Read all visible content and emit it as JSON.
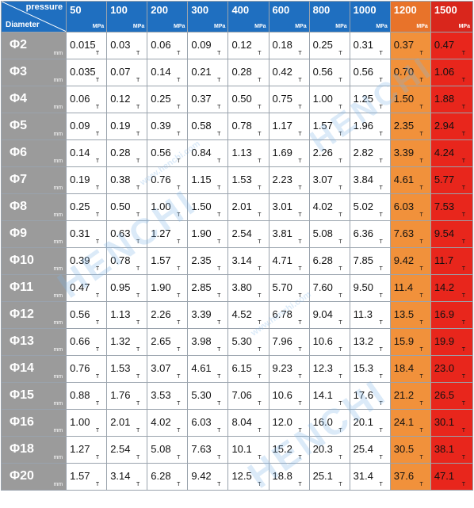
{
  "header": {
    "pressure_label": "pressure",
    "diameter_label": "Diameter",
    "pressure_unit": "MPa",
    "pressures": [
      "50",
      "100",
      "200",
      "300",
      "400",
      "600",
      "800",
      "1000",
      "1200",
      "1500"
    ]
  },
  "row_unit": "mm",
  "value_unit": "T",
  "watermark": {
    "brand": "HENCHI",
    "url": "www.henchi.com"
  },
  "colors": {
    "header_blue": "#1f6fc0",
    "diameter_gray": "#9b9b9b",
    "orange": "#f1913b",
    "red": "#e8261c"
  },
  "rows": [
    {
      "diameter": "Φ2",
      "values": [
        "0.015",
        "0.03",
        "0.06",
        "0.09",
        "0.12",
        "0.18",
        "0.25",
        "0.31",
        "0.37",
        "0.47"
      ]
    },
    {
      "diameter": "Φ3",
      "values": [
        "0.035",
        "0.07",
        "0.14",
        "0.21",
        "0.28",
        "0.42",
        "0.56",
        "0.56",
        "0.70",
        "1.06"
      ]
    },
    {
      "diameter": "Φ4",
      "values": [
        "0.06",
        "0.12",
        "0.25",
        "0.37",
        "0.50",
        "0.75",
        "1.00",
        "1.25",
        "1.50",
        "1.88"
      ]
    },
    {
      "diameter": "Φ5",
      "values": [
        "0.09",
        "0.19",
        "0.39",
        "0.58",
        "0.78",
        "1.17",
        "1.57",
        "1.96",
        "2.35",
        "2.94"
      ]
    },
    {
      "diameter": "Φ6",
      "values": [
        "0.14",
        "0.28",
        "0.56",
        "0.84",
        "1.13",
        "1.69",
        "2.26",
        "2.82",
        "3.39",
        "4.24"
      ]
    },
    {
      "diameter": "Φ7",
      "values": [
        "0.19",
        "0.38",
        "0.76",
        "1.15",
        "1.53",
        "2.23",
        "3.07",
        "3.84",
        "4.61",
        "5.77"
      ]
    },
    {
      "diameter": "Φ8",
      "values": [
        "0.25",
        "0.50",
        "1.00",
        "1.50",
        "2.01",
        "3.01",
        "4.02",
        "5.02",
        "6.03",
        "7.53"
      ]
    },
    {
      "diameter": "Φ9",
      "values": [
        "0.31",
        "0.63",
        "1.27",
        "1.90",
        "2.54",
        "3.81",
        "5.08",
        "6.36",
        "7.63",
        "9.54"
      ]
    },
    {
      "diameter": "Φ10",
      "values": [
        "0.39",
        "0.78",
        "1.57",
        "2.35",
        "3.14",
        "4.71",
        "6.28",
        "7.85",
        "9.42",
        "11.7"
      ]
    },
    {
      "diameter": "Φ11",
      "values": [
        "0.47",
        "0.95",
        "1.90",
        "2.85",
        "3.80",
        "5.70",
        "7.60",
        "9.50",
        "11.4",
        "14.2"
      ]
    },
    {
      "diameter": "Φ12",
      "values": [
        "0.56",
        "1.13",
        "2.26",
        "3.39",
        "4.52",
        "6.78",
        "9.04",
        "11.3",
        "13.5",
        "16.9"
      ]
    },
    {
      "diameter": "Φ13",
      "values": [
        "0.66",
        "1.32",
        "2.65",
        "3.98",
        "5.30",
        "7.96",
        "10.6",
        "13.2",
        "15.9",
        "19.9"
      ]
    },
    {
      "diameter": "Φ14",
      "values": [
        "0.76",
        "1.53",
        "3.07",
        "4.61",
        "6.15",
        "9.23",
        "12.3",
        "15.3",
        "18.4",
        "23.0"
      ]
    },
    {
      "diameter": "Φ15",
      "values": [
        "0.88",
        "1.76",
        "3.53",
        "5.30",
        "7.06",
        "10.6",
        "14.1",
        "17.6",
        "21.2",
        "26.5"
      ]
    },
    {
      "diameter": "Φ16",
      "values": [
        "1.00",
        "2.01",
        "4.02",
        "6.03",
        "8.04",
        "12.0",
        "16.0",
        "20.1",
        "24.1",
        "30.1"
      ]
    },
    {
      "diameter": "Φ18",
      "values": [
        "1.27",
        "2.54",
        "5.08",
        "7.63",
        "10.1",
        "15.2",
        "20.3",
        "25.4",
        "30.5",
        "38.1"
      ]
    },
    {
      "diameter": "Φ20",
      "values": [
        "1.57",
        "3.14",
        "6.28",
        "9.42",
        "12.5",
        "18.8",
        "25.1",
        "31.4",
        "37.6",
        "47.1"
      ]
    }
  ]
}
